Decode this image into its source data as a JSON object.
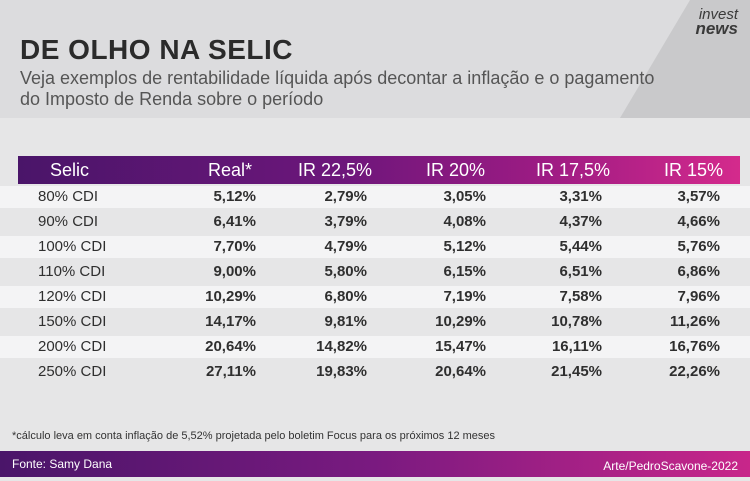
{
  "header": {
    "title": "DE OLHO NA SELIC",
    "subtitle": "Veja exemplos de rentabilidade líquida após decontar a inflação e o pagamento do Imposto de Renda sobre o período",
    "logo_line1": "invest",
    "logo_line2": "news"
  },
  "table": {
    "headers": [
      "Selic",
      "Real*",
      "IR 22,5%",
      "IR 20%",
      "IR 17,5%",
      "IR 15%"
    ],
    "rows": [
      [
        "80% CDI",
        "5,12%",
        "2,79%",
        "3,05%",
        "3,31%",
        "3,57%"
      ],
      [
        "90% CDI",
        "6,41%",
        "3,79%",
        "4,08%",
        "4,37%",
        "4,66%"
      ],
      [
        "100% CDI",
        "7,70%",
        "4,79%",
        "5,12%",
        "5,44%",
        "5,76%"
      ],
      [
        "110% CDI",
        "9,00%",
        "5,80%",
        "6,15%",
        "6,51%",
        "6,86%"
      ],
      [
        "120% CDI",
        "10,29%",
        "6,80%",
        "7,19%",
        "7,58%",
        "7,96%"
      ],
      [
        "150% CDI",
        "14,17%",
        "9,81%",
        "10,29%",
        "10,78%",
        "11,26%"
      ],
      [
        "200% CDI",
        "20,64%",
        "14,82%",
        "15,47%",
        "16,11%",
        "16,76%"
      ],
      [
        "250% CDI",
        "27,11%",
        "19,83%",
        "20,64%",
        "21,45%",
        "22,26%"
      ]
    ]
  },
  "footnote": "*cálculo leva em conta inflação de 5,52% projetada pelo boletim Focus para os próximos 12 meses",
  "footer": {
    "source": "Fonte: Samy Dana",
    "credit": "Arte/PedroScavone-2022"
  },
  "colors": {
    "header_gradient_start": "#4a1569",
    "header_gradient_end": "#d42a8c"
  }
}
